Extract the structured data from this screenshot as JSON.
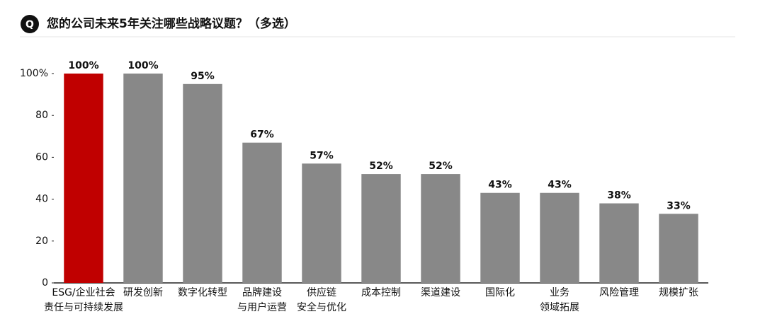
{
  "chart_data": {
    "type": "bar",
    "icon_label": "Q",
    "title": "您的公司未来5年关注哪些战略议题？（多选）",
    "categories": [
      [
        "ESG/企业社会",
        "责任与可持续发展"
      ],
      [
        "研发创新"
      ],
      [
        "数字化转型"
      ],
      [
        "品牌建设",
        "与用户运营"
      ],
      [
        "供应链",
        "安全与优化"
      ],
      [
        "成本控制"
      ],
      [
        "渠道建设"
      ],
      [
        "国际化"
      ],
      [
        "业务",
        "领域拓展"
      ],
      [
        "风险管理"
      ],
      [
        "规模扩张"
      ]
    ],
    "values": [
      100,
      100,
      95,
      67,
      57,
      52,
      52,
      43,
      43,
      38,
      33
    ],
    "value_labels": [
      "100%",
      "100%",
      "95%",
      "67%",
      "57%",
      "52%",
      "52%",
      "43%",
      "43%",
      "38%",
      "33%"
    ],
    "colors": [
      "#c00000",
      "#888888",
      "#888888",
      "#888888",
      "#888888",
      "#888888",
      "#888888",
      "#888888",
      "#888888",
      "#888888",
      "#888888"
    ],
    "ylim": [
      0,
      100
    ],
    "yticks": [
      0,
      20,
      40,
      60,
      80,
      {
        "value": 100,
        "label": "100%"
      }
    ],
    "grid": false
  }
}
